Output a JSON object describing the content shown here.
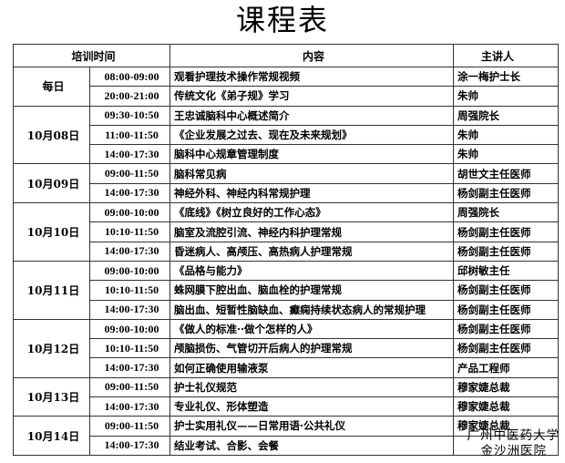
{
  "title": "课程表",
  "headers": {
    "time": "培训时间",
    "content": "内容",
    "speaker": "主讲人"
  },
  "days": [
    {
      "day": "每日",
      "sessions": [
        {
          "time": "08:00-09:00",
          "content": "观看护理技术操作常规视频",
          "speaker": "涂一梅护士长"
        },
        {
          "time": "20:00-21:00",
          "content": "传统文化《弟子规》学习",
          "speaker": "朱帅"
        }
      ]
    },
    {
      "day": "10月08日",
      "sessions": [
        {
          "time": "09:30-10:50",
          "content": "王忠诚脑科中心概述简介",
          "speaker": "周强院长"
        },
        {
          "time": "11:00-11:50",
          "content": "《企业发展之过去、现在及未来规划》",
          "speaker": "朱帅"
        },
        {
          "time": "14:00-17:30",
          "content": "脑科中心规章管理制度",
          "speaker": "朱帅"
        }
      ]
    },
    {
      "day": "10月09日",
      "sessions": [
        {
          "time": "09:00-11:50",
          "content": "脑科常见病",
          "speaker": "胡世文主任医师"
        },
        {
          "time": "14:00-17:30",
          "content": "神经外科、神经内科常规护理",
          "speaker": "杨剑副主任医师"
        }
      ]
    },
    {
      "day": "10月10日",
      "sessions": [
        {
          "time": "09:00-10:00",
          "content": "《底线》《树立良好的工作心态》",
          "speaker": "周强院长"
        },
        {
          "time": "10:10-11:50",
          "content": "脑室及流腔引流、神经内科护理常规",
          "speaker": "杨剑副主任医师"
        },
        {
          "time": "14:00-17:30",
          "content": "昏迷病人、高颅压、高热病人护理常规",
          "speaker": "杨剑副主任医师"
        }
      ]
    },
    {
      "day": "10月11日",
      "sessions": [
        {
          "time": "09:00-10:00",
          "content": "《品格与能力》",
          "speaker": "邱树敏主任"
        },
        {
          "time": "10:10-11:50",
          "content": "蛛网膜下腔出血、脑血栓的护理常规",
          "speaker": "杨剑副主任医师"
        },
        {
          "time": "14:00-17:30",
          "content": "脑出血、短暂性脑缺血、癫痫持续状态病人的常规护理",
          "speaker": "杨剑副主任医师"
        }
      ]
    },
    {
      "day": "10月12日",
      "sessions": [
        {
          "time": "09:00-10:00",
          "content": "《做人的标准··做个怎样的人》",
          "speaker": "杨剑副主任医师"
        },
        {
          "time": "10:10-11:50",
          "content": "颅脑损伤、气管切开后病人的护理常规",
          "speaker": "杨剑副主任医师"
        },
        {
          "time": "14:00-17:30",
          "content": "如何正确使用输液泵",
          "speaker": "产品工程师"
        }
      ]
    },
    {
      "day": "10月13日",
      "sessions": [
        {
          "time": "09:00-11:50",
          "content": "护士礼仪规范",
          "speaker": "穆家婕总裁"
        },
        {
          "time": "14:00-17:30",
          "content": "专业礼仪、形体塑造",
          "speaker": "穆家婕总裁"
        }
      ]
    },
    {
      "day": "10月14日",
      "sessions": [
        {
          "time": "09:00-11:50",
          "content": "护士实用礼仪——日常用语·公共礼仪",
          "speaker": "穆家婕总裁"
        },
        {
          "time": "14:00-17:30",
          "content": "结业考试、合影、会餐",
          "speaker": ""
        }
      ]
    }
  ],
  "watermark": {
    "line1": "广州中医药大学",
    "line2": "金沙洲医院"
  }
}
